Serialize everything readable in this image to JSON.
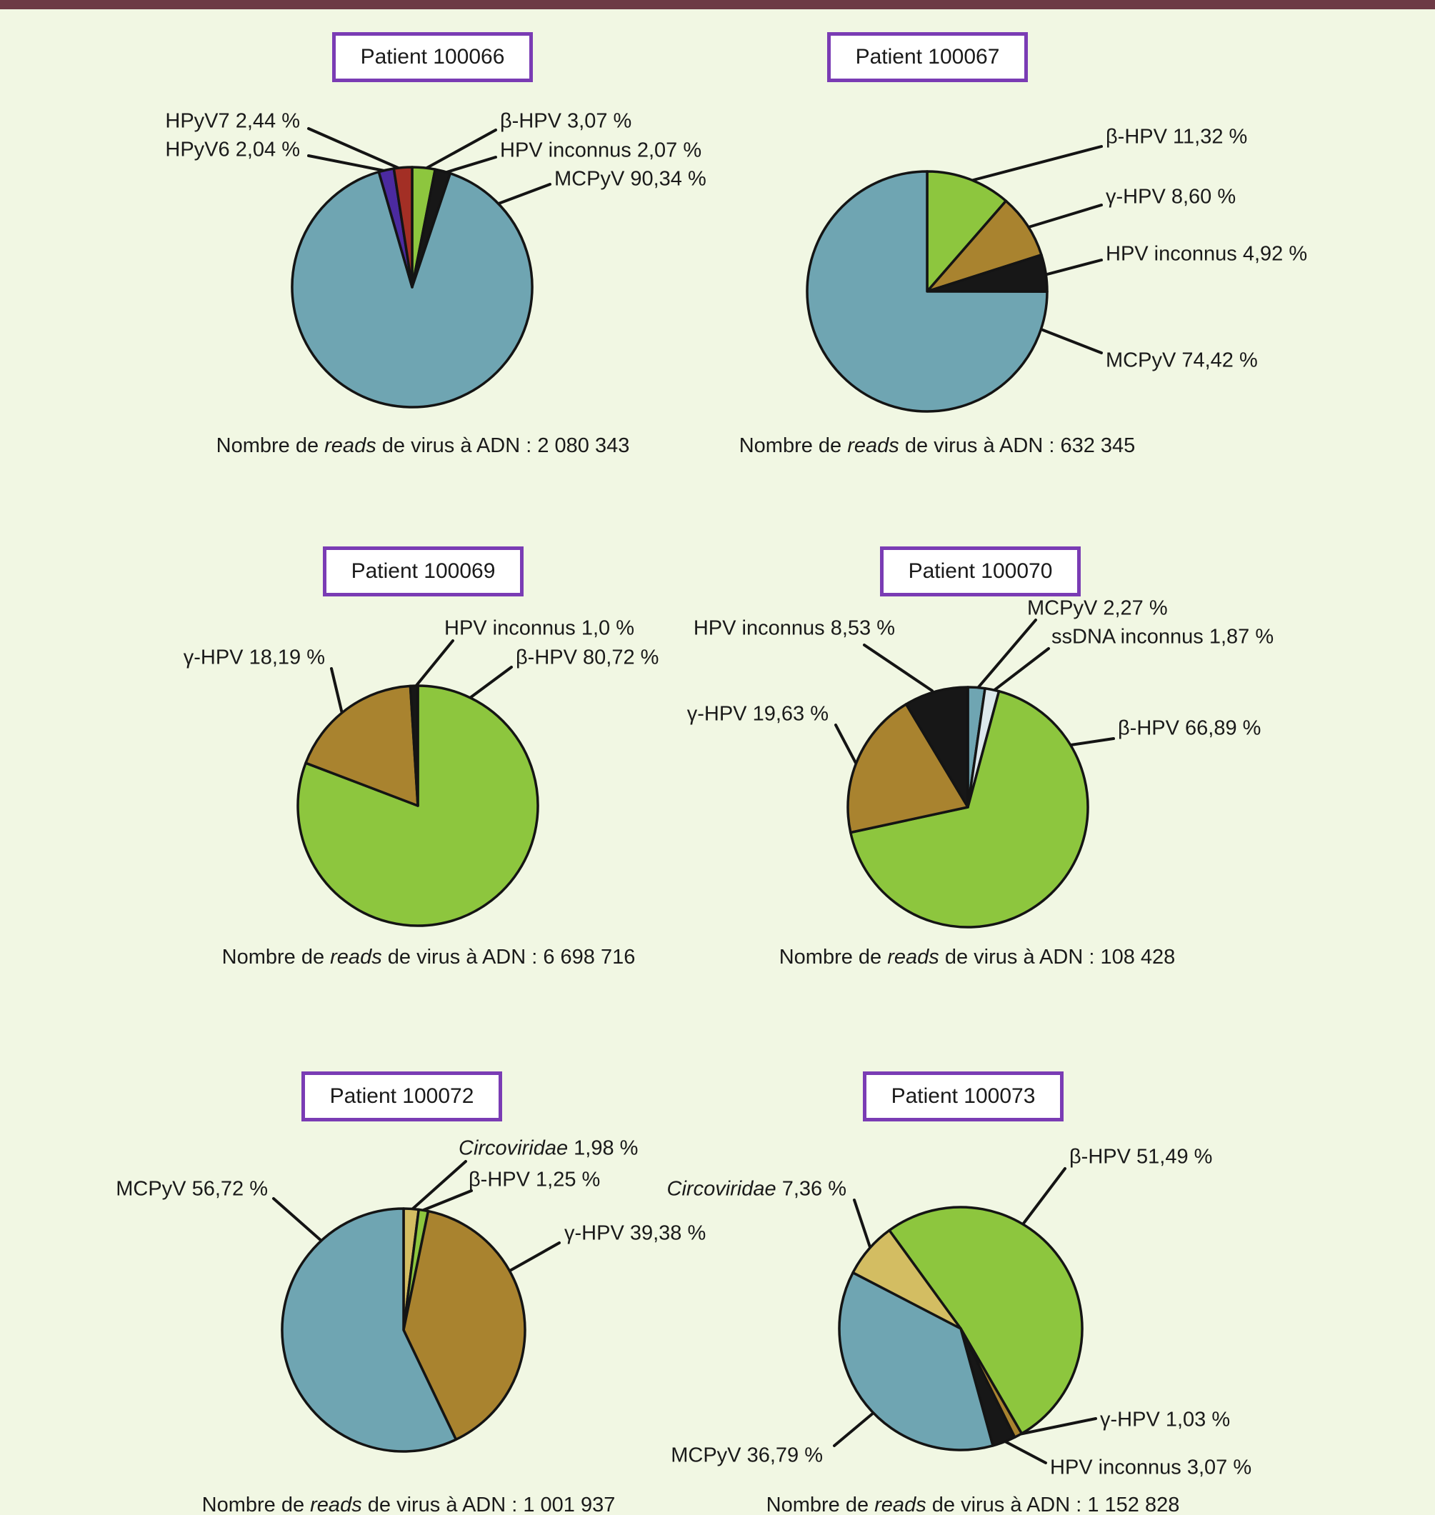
{
  "figure": {
    "top_bar_color": "#6d3a45",
    "background_color": "#f1f7e3",
    "box_border_color": "#7a3cb4",
    "text_color": "#1a1a1a",
    "caption_prefix": "Nombre de ",
    "caption_italic": "reads",
    "caption_suffix": " de virus à ADN : "
  },
  "colors": {
    "green": "#8dc63e",
    "black": "#171717",
    "teal": "#6fa5b2",
    "purple": "#4b2aa0",
    "red": "#a32f25",
    "brown": "#a9832f",
    "khaki": "#d3bd62",
    "paleblue": "#dce8ec",
    "outline": "#141414"
  },
  "chart_data": [
    {
      "type": "pie",
      "title": "Patient 100066",
      "reads_total": "2 080 343",
      "slices": [
        {
          "name": "β-HPV",
          "value": 3.07,
          "pct_text": "3,07 %",
          "color": "green"
        },
        {
          "name": "HPV inconnus",
          "value": 2.07,
          "pct_text": "2,07 %",
          "color": "black"
        },
        {
          "name": "MCPyV",
          "value": 90.34,
          "pct_text": "90,34 %",
          "color": "teal"
        },
        {
          "name": "HPyV6",
          "value": 2.04,
          "pct_text": "2,04 %",
          "color": "purple"
        },
        {
          "name": "HPyV7",
          "value": 2.44,
          "pct_text": "2,44 %",
          "color": "red"
        }
      ]
    },
    {
      "type": "pie",
      "title": "Patient 100067",
      "reads_total": "632 345",
      "slices": [
        {
          "name": "β-HPV",
          "value": 11.32,
          "pct_text": "11,32 %",
          "color": "green"
        },
        {
          "name": "γ-HPV",
          "value": 8.6,
          "pct_text": "8,60 %",
          "color": "brown"
        },
        {
          "name": "HPV inconnus",
          "value": 4.92,
          "pct_text": "4,92 %",
          "color": "black"
        },
        {
          "name": "MCPyV",
          "value": 74.42,
          "pct_text": "74,42 %",
          "color": "teal"
        }
      ]
    },
    {
      "type": "pie",
      "title": "Patient 100069",
      "reads_total": "6 698 716",
      "slices": [
        {
          "name": "β-HPV",
          "value": 80.72,
          "pct_text": "80,72 %",
          "color": "green"
        },
        {
          "name": "γ-HPV",
          "value": 18.19,
          "pct_text": "18,19 %",
          "color": "brown"
        },
        {
          "name": "HPV inconnus",
          "value": 1.0,
          "pct_text": "1,0 %",
          "color": "black"
        }
      ]
    },
    {
      "type": "pie",
      "title": "Patient 100070",
      "reads_total": "108 428",
      "slices": [
        {
          "name": "MCPyV",
          "value": 2.27,
          "pct_text": "2,27 %",
          "color": "teal"
        },
        {
          "name": "ssDNA inconnus",
          "value": 1.87,
          "pct_text": "1,87 %",
          "color": "paleblue"
        },
        {
          "name": "β-HPV",
          "value": 66.89,
          "pct_text": "66,89 %",
          "color": "green"
        },
        {
          "name": "γ-HPV",
          "value": 19.63,
          "pct_text": "19,63 %",
          "color": "brown"
        },
        {
          "name": "HPV inconnus",
          "value": 8.53,
          "pct_text": "8,53 %",
          "color": "black"
        }
      ]
    },
    {
      "type": "pie",
      "title": "Patient 100072",
      "reads_total": "1 001 937",
      "slices": [
        {
          "name": "Circoviridae",
          "value": 1.98,
          "pct_text": "1,98 %",
          "color": "khaki",
          "italic_name": true
        },
        {
          "name": "β-HPV",
          "value": 1.25,
          "pct_text": "1,25 %",
          "color": "green"
        },
        {
          "name": "γ-HPV",
          "value": 39.38,
          "pct_text": "39,38 %",
          "color": "brown"
        },
        {
          "name": "MCPyV",
          "value": 56.72,
          "pct_text": "56,72 %",
          "color": "teal"
        }
      ]
    },
    {
      "type": "pie",
      "title": "Patient 100073",
      "reads_total": "1 152 828",
      "slices": [
        {
          "name": "β-HPV",
          "value": 51.49,
          "pct_text": "51,49 %",
          "color": "green"
        },
        {
          "name": "γ-HPV",
          "value": 1.03,
          "pct_text": "1,03 %",
          "color": "brown"
        },
        {
          "name": "HPV inconnus",
          "value": 3.07,
          "pct_text": "3,07 %",
          "color": "black"
        },
        {
          "name": "MCPyV",
          "value": 36.79,
          "pct_text": "36,79 %",
          "color": "teal"
        },
        {
          "name": "Circoviridae",
          "value": 7.36,
          "pct_text": "7,36 %",
          "color": "khaki",
          "italic_name": true
        }
      ]
    }
  ]
}
